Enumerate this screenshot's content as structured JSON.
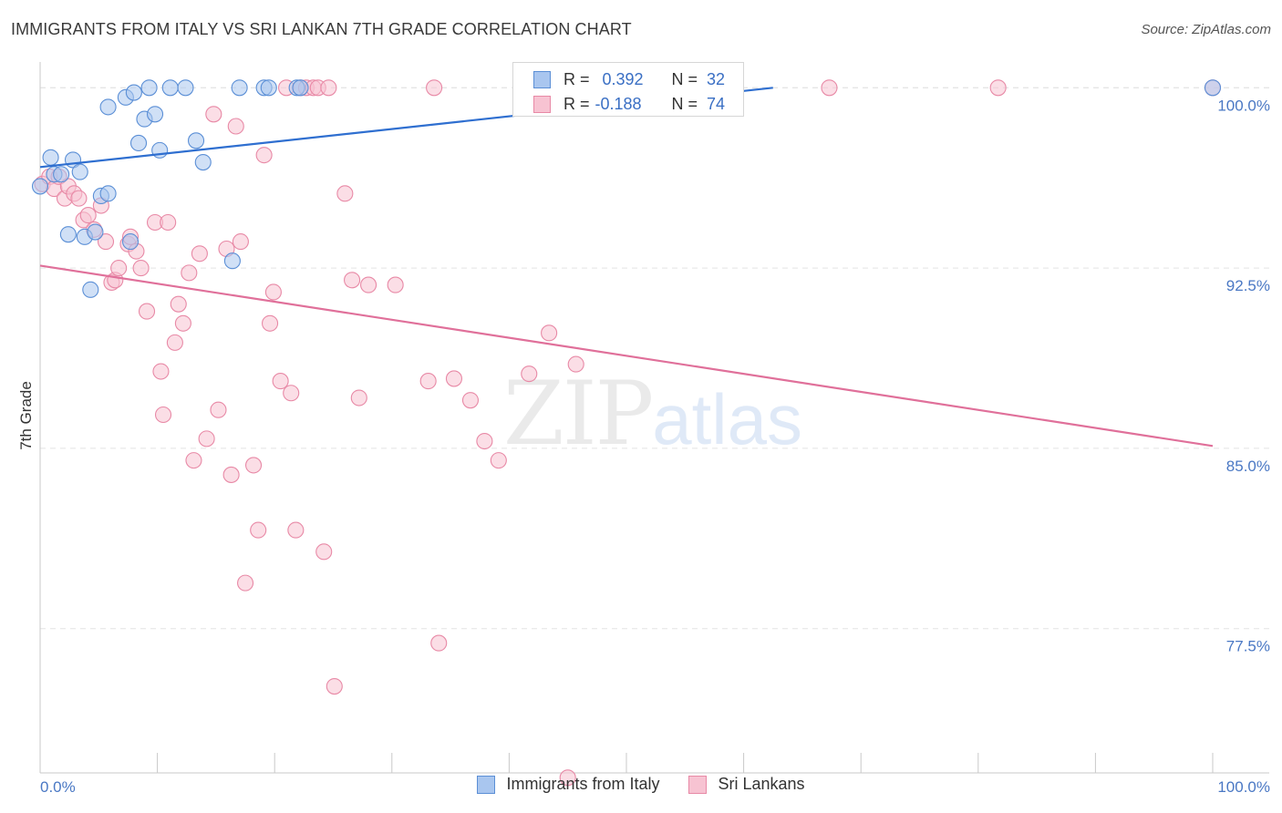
{
  "title": "IMMIGRANTS FROM ITALY VS SRI LANKAN 7TH GRADE CORRELATION CHART",
  "source": "Source: ZipAtlas.com",
  "watermark": {
    "part_a": "ZIP",
    "part_b": "atlas"
  },
  "colors": {
    "blue_fill": "#a9c6ef",
    "blue_stroke": "#5b8fd6",
    "blue_line": "#2f6fd0",
    "pink_fill": "#f7c3d2",
    "pink_stroke": "#e889a6",
    "pink_line": "#e0709a",
    "grid": "#e3e3e3",
    "axis_text": "#4a78c4"
  },
  "legend": {
    "series1": {
      "r_label": "R =",
      "r_value": "0.392",
      "n_label": "N =",
      "n_value": "32"
    },
    "series2": {
      "r_label": "R =",
      "r_value": "-0.188",
      "n_label": "N =",
      "n_value": "74"
    }
  },
  "bottom_legend": {
    "series1": "Immigrants from Italy",
    "series2": "Sri Lankans"
  },
  "chart_data": {
    "type": "scatter",
    "title": "IMMIGRANTS FROM ITALY VS SRI LANKAN 7TH GRADE CORRELATION CHART",
    "xlabel": "",
    "ylabel": "7th Grade",
    "xlim": [
      0,
      100
    ],
    "ylim": [
      71.5,
      101.3
    ],
    "x_tick_labels": [
      "0.0%",
      "100.0%"
    ],
    "y_ticks": [
      {
        "value": 100.0,
        "label": "100.0%"
      },
      {
        "value": 92.5,
        "label": "92.5%"
      },
      {
        "value": 85.0,
        "label": "85.0%"
      },
      {
        "value": 77.5,
        "label": "77.5%"
      }
    ],
    "grid": true,
    "series": [
      {
        "name": "Immigrants from Italy",
        "color": "blue",
        "trend": {
          "x": [
            0,
            62.5
          ],
          "y": [
            96.7,
            100.0
          ]
        },
        "points": [
          [
            0.0,
            95.9
          ],
          [
            0.9,
            97.1
          ],
          [
            1.2,
            96.4
          ],
          [
            1.8,
            96.4
          ],
          [
            2.4,
            93.9
          ],
          [
            2.8,
            97.0
          ],
          [
            3.4,
            96.5
          ],
          [
            3.8,
            93.8
          ],
          [
            4.3,
            91.6
          ],
          [
            4.7,
            94.0
          ],
          [
            5.2,
            95.5
          ],
          [
            5.8,
            95.6
          ],
          [
            5.8,
            99.2
          ],
          [
            7.3,
            99.6
          ],
          [
            7.7,
            93.6
          ],
          [
            8.0,
            99.8
          ],
          [
            8.4,
            97.7
          ],
          [
            8.9,
            98.7
          ],
          [
            9.3,
            100.0
          ],
          [
            9.8,
            98.9
          ],
          [
            10.2,
            97.4
          ],
          [
            11.1,
            100.0
          ],
          [
            12.4,
            100.0
          ],
          [
            13.3,
            97.8
          ],
          [
            13.9,
            96.9
          ],
          [
            16.4,
            92.8
          ],
          [
            17.0,
            100.0
          ],
          [
            19.1,
            100.0
          ],
          [
            19.5,
            100.0
          ],
          [
            21.9,
            100.0
          ],
          [
            22.2,
            100.0
          ],
          [
            100.0,
            100.0
          ]
        ]
      },
      {
        "name": "Sri Lankans",
        "color": "pink",
        "trend": {
          "x": [
            0,
            100
          ],
          "y": [
            92.6,
            85.1
          ]
        },
        "points": [
          [
            0.2,
            96.0
          ],
          [
            0.8,
            96.3
          ],
          [
            1.2,
            95.8
          ],
          [
            1.6,
            96.3
          ],
          [
            2.1,
            95.4
          ],
          [
            2.4,
            95.9
          ],
          [
            2.9,
            95.6
          ],
          [
            3.3,
            95.4
          ],
          [
            3.7,
            94.5
          ],
          [
            4.1,
            94.7
          ],
          [
            4.6,
            94.1
          ],
          [
            5.2,
            95.1
          ],
          [
            5.6,
            93.6
          ],
          [
            6.1,
            91.9
          ],
          [
            6.4,
            92.0
          ],
          [
            6.7,
            92.5
          ],
          [
            7.5,
            93.5
          ],
          [
            7.7,
            93.8
          ],
          [
            8.2,
            93.2
          ],
          [
            8.6,
            92.5
          ],
          [
            9.1,
            90.7
          ],
          [
            9.8,
            94.4
          ],
          [
            10.3,
            88.2
          ],
          [
            10.5,
            86.4
          ],
          [
            10.9,
            94.4
          ],
          [
            11.5,
            89.4
          ],
          [
            11.8,
            91.0
          ],
          [
            12.2,
            90.2
          ],
          [
            12.7,
            92.3
          ],
          [
            13.1,
            84.5
          ],
          [
            13.6,
            93.1
          ],
          [
            14.2,
            85.4
          ],
          [
            14.8,
            98.9
          ],
          [
            15.2,
            86.6
          ],
          [
            15.9,
            93.3
          ],
          [
            16.3,
            83.9
          ],
          [
            16.7,
            98.4
          ],
          [
            17.1,
            93.6
          ],
          [
            17.5,
            79.4
          ],
          [
            18.2,
            84.3
          ],
          [
            18.6,
            81.6
          ],
          [
            19.1,
            97.2
          ],
          [
            19.6,
            90.2
          ],
          [
            19.9,
            91.5
          ],
          [
            20.5,
            87.8
          ],
          [
            21.0,
            100.0
          ],
          [
            21.4,
            87.3
          ],
          [
            21.8,
            81.6
          ],
          [
            22.2,
            100.0
          ],
          [
            22.7,
            100.0
          ],
          [
            23.3,
            100.0
          ],
          [
            23.7,
            100.0
          ],
          [
            24.2,
            80.7
          ],
          [
            24.6,
            100.0
          ],
          [
            25.1,
            75.1
          ],
          [
            26.0,
            95.6
          ],
          [
            26.6,
            92.0
          ],
          [
            27.2,
            87.1
          ],
          [
            28.0,
            91.8
          ],
          [
            30.3,
            91.8
          ],
          [
            33.1,
            87.8
          ],
          [
            33.6,
            100.0
          ],
          [
            34.0,
            76.9
          ],
          [
            35.3,
            87.9
          ],
          [
            36.7,
            87.0
          ],
          [
            37.9,
            85.3
          ],
          [
            39.1,
            84.5
          ],
          [
            41.7,
            88.1
          ],
          [
            43.4,
            89.8
          ],
          [
            45.0,
            71.3
          ],
          [
            45.7,
            88.5
          ],
          [
            67.3,
            100.0
          ],
          [
            81.7,
            100.0
          ],
          [
            100.0,
            100.0
          ]
        ]
      }
    ]
  }
}
